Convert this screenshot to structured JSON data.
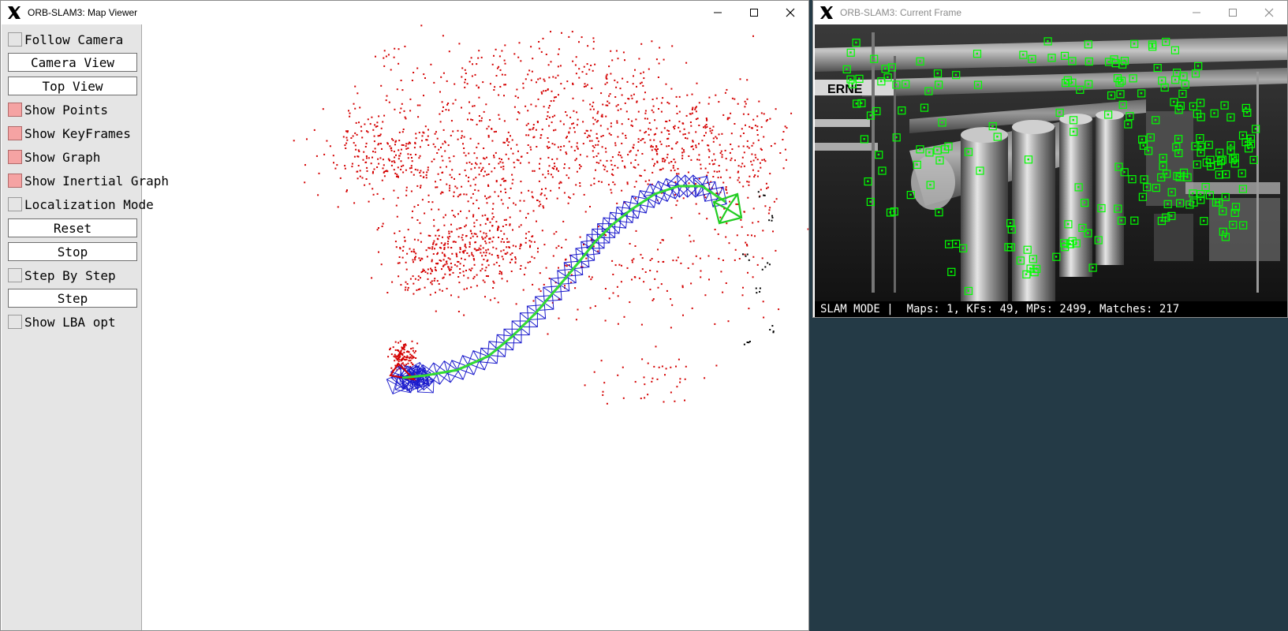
{
  "map_viewer": {
    "title": "ORB-SLAM3: Map Viewer",
    "panel": {
      "follow_camera": {
        "label": "Follow Camera",
        "checked": false
      },
      "camera_view": "Camera View",
      "top_view": "Top View",
      "show_points": {
        "label": "Show Points",
        "checked": true
      },
      "show_keyframes": {
        "label": "Show KeyFrames",
        "checked": true
      },
      "show_graph": {
        "label": "Show Graph",
        "checked": true
      },
      "show_inertial_graph": {
        "label": "Show Inertial Graph",
        "checked": true
      },
      "localization_mode": {
        "label": "Localization Mode",
        "checked": false
      },
      "reset": "Reset",
      "stop": "Stop",
      "step_by_step": {
        "label": "Step By Step",
        "checked": false
      },
      "step": "Step",
      "show_lba_opt": {
        "label": "Show LBA opt",
        "checked": false
      }
    },
    "colors": {
      "map_points": "#d40000",
      "local_points": "#000000",
      "keyframes": "#1a1acc",
      "graph": "#33dd33",
      "current_camera": "#22cc22",
      "panel_bg": "#e5e5e5",
      "checked_box": "#f5a3a3"
    }
  },
  "current_frame": {
    "title": "ORB-SLAM3: Current Frame",
    "image_text": "ERNE",
    "status": "SLAM MODE |  Maps: 1, KFs: 49, MPs: 2499, Matches: 217",
    "feature_color": "#00ff00"
  },
  "desktop": {
    "background": "#243a46"
  },
  "window_controls": {
    "icons": [
      "minimize-icon",
      "maximize-icon",
      "close-icon"
    ]
  }
}
